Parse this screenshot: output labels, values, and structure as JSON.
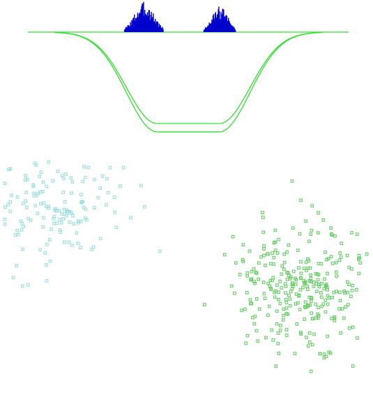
{
  "chart_data": [
    {
      "type": "histogram",
      "title": "",
      "xlabel": "",
      "ylabel": "",
      "colors": {
        "bars": "#0000cc",
        "baseline": "#33dd33",
        "curve": "#33dd33"
      },
      "xlim": [
        -3.6,
        3.6
      ],
      "clusters": [
        {
          "center": -1.0,
          "spread": 0.22,
          "peak": 1.0
        },
        {
          "center": 0.7,
          "spread": 0.18,
          "peak": 0.85
        }
      ],
      "trough_curve": {
        "description_free": true,
        "top": 0.0,
        "bottom": -1.0,
        "center": 0.0,
        "width": 1.4
      },
      "grid": false,
      "legend": "none"
    },
    {
      "type": "scatter",
      "title": "",
      "xlabel": "",
      "ylabel": "",
      "grid": false,
      "legend": "none",
      "xlim": [
        0,
        10
      ],
      "ylim": [
        0,
        10
      ],
      "series": [
        {
          "color": "#99dddd",
          "marker": "square",
          "center": [
            1.3,
            7.2
          ],
          "spread": [
            1.6,
            1.7
          ],
          "count": 160,
          "seed": 7
        },
        {
          "color": "#66cc66",
          "marker": "square",
          "center": [
            8.1,
            4.2
          ],
          "spread": [
            1.5,
            2.1
          ],
          "count": 300,
          "seed": 13
        }
      ]
    }
  ]
}
